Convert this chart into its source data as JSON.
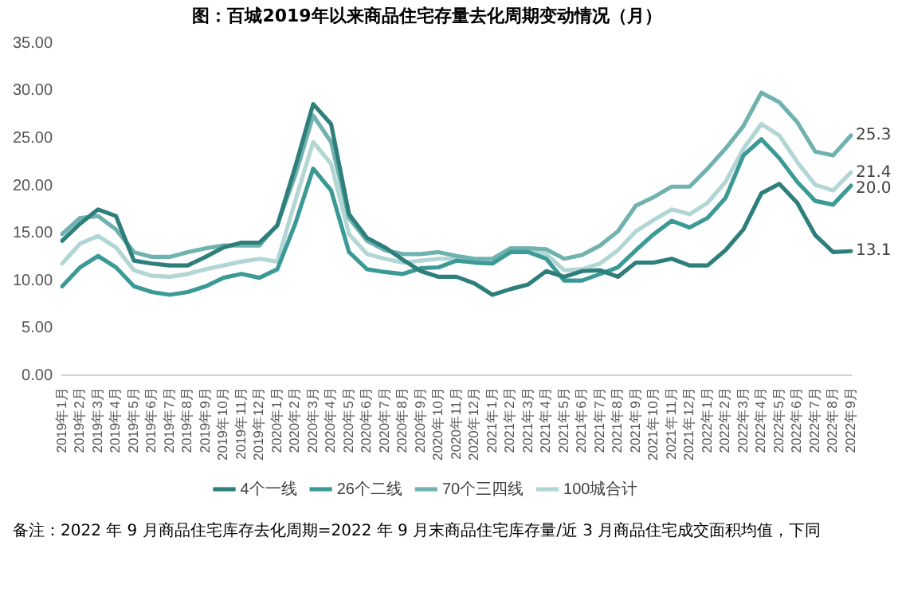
{
  "chart_data": {
    "type": "line",
    "title": "图：百城2019年以来商品住宅存量去化周期变动情况（月）",
    "categories": [
      "2019年1月",
      "2019年2月",
      "2019年3月",
      "2019年4月",
      "2019年5月",
      "2019年6月",
      "2019年7月",
      "2019年8月",
      "2019年9月",
      "2019年10月",
      "2019年11月",
      "2019年12月",
      "2020年1月",
      "2020年2月",
      "2020年3月",
      "2020年4月",
      "2020年5月",
      "2020年6月",
      "2020年7月",
      "2020年8月",
      "2020年9月",
      "2020年10月",
      "2020年11月",
      "2020年12月",
      "2021年1月",
      "2021年2月",
      "2021年3月",
      "2021年4月",
      "2021年5月",
      "2021年6月",
      "2021年7月",
      "2021年8月",
      "2021年9月",
      "2021年10月",
      "2021年11月",
      "2021年12月",
      "2022年1月",
      "2022年2月",
      "2022年3月",
      "2022年4月",
      "2022年5月",
      "2022年6月",
      "2022年7月",
      "2022年8月",
      "2022年9月"
    ],
    "series": [
      {
        "name": "4个一线",
        "color": "#2e7f7b",
        "values": [
          14.2,
          16,
          17.5,
          16.8,
          12.1,
          11.8,
          11.6,
          11.6,
          12.5,
          13.5,
          14,
          14,
          15.8,
          22,
          28.6,
          26.5,
          17,
          14.5,
          13.5,
          12.2,
          11,
          10.4,
          10.4,
          9.7,
          8.5,
          9.1,
          9.6,
          11,
          10.4,
          11,
          11.1,
          10.4,
          11.9,
          11.9,
          12.3,
          11.6,
          11.6,
          13.2,
          15.4,
          19.2,
          20.2,
          18.2,
          14.8,
          13,
          13.1
        ],
        "value_labels": [
          null,
          null,
          null,
          null,
          null,
          null,
          null,
          null,
          null,
          null,
          null,
          null,
          null,
          null,
          null,
          null,
          null,
          null,
          null,
          null,
          null,
          null,
          null,
          null,
          null,
          null,
          null,
          null,
          null,
          null,
          null,
          null,
          null,
          null,
          null,
          null,
          null,
          null,
          null,
          null,
          null,
          null,
          null,
          null,
          "13.1"
        ]
      },
      {
        "name": "26个二线",
        "color": "#3b9a96",
        "values": [
          9.4,
          11.4,
          12.6,
          11.4,
          9.4,
          8.8,
          8.5,
          8.8,
          9.4,
          10.3,
          10.7,
          10.3,
          11.2,
          16,
          21.8,
          19.5,
          13,
          11.2,
          10.9,
          10.7,
          11.3,
          11.4,
          12.1,
          11.9,
          11.8,
          13,
          13,
          12.3,
          10,
          10,
          10.7,
          11.4,
          13.2,
          14.9,
          16.3,
          15.6,
          16.6,
          18.7,
          23.2,
          24.9,
          22.9,
          20.4,
          18.4,
          18,
          20
        ],
        "value_labels": [
          null,
          null,
          null,
          null,
          null,
          null,
          null,
          null,
          null,
          null,
          null,
          null,
          null,
          null,
          null,
          null,
          null,
          null,
          null,
          null,
          null,
          null,
          null,
          null,
          null,
          null,
          null,
          null,
          null,
          null,
          null,
          null,
          null,
          null,
          null,
          null,
          null,
          null,
          null,
          null,
          null,
          null,
          null,
          null,
          "20.0"
        ]
      },
      {
        "name": "70个三四线",
        "color": "#70b2af",
        "values": [
          14.9,
          16.6,
          16.8,
          15.4,
          13,
          12.5,
          12.5,
          13,
          13.4,
          13.7,
          13.7,
          13.7,
          15.9,
          21.1,
          27.4,
          24.6,
          16.6,
          14.2,
          13.2,
          12.8,
          12.8,
          13,
          12.6,
          12.3,
          12.3,
          13.4,
          13.4,
          13.3,
          12.3,
          12.7,
          13.7,
          15.2,
          17.9,
          18.8,
          19.9,
          19.9,
          21.8,
          23.9,
          26.3,
          29.8,
          28.8,
          26.7,
          23.6,
          23.2,
          25.3
        ],
        "value_labels": [
          null,
          null,
          null,
          null,
          null,
          null,
          null,
          null,
          null,
          null,
          null,
          null,
          null,
          null,
          null,
          null,
          null,
          null,
          null,
          null,
          null,
          null,
          null,
          null,
          null,
          null,
          null,
          null,
          null,
          null,
          null,
          null,
          null,
          null,
          null,
          null,
          null,
          null,
          null,
          null,
          null,
          null,
          null,
          null,
          "25.3"
        ]
      },
      {
        "name": "100城合计",
        "color": "#b2d6d4",
        "values": [
          11.8,
          13.9,
          14.7,
          13.5,
          11.1,
          10.5,
          10.4,
          10.7,
          11.2,
          11.6,
          12,
          12.3,
          12,
          18.4,
          24.6,
          22.3,
          14.9,
          12.8,
          12.3,
          11.9,
          12.1,
          12.3,
          12.3,
          12.1,
          12.1,
          13,
          13,
          12.8,
          11.1,
          11.2,
          11.8,
          13.2,
          15.2,
          16.4,
          17.5,
          17,
          18.2,
          20.4,
          23.9,
          26.5,
          25.3,
          22.5,
          20.1,
          19.5,
          21.4
        ],
        "value_labels": [
          null,
          null,
          null,
          null,
          null,
          null,
          null,
          null,
          null,
          null,
          null,
          null,
          null,
          null,
          null,
          null,
          null,
          null,
          null,
          null,
          null,
          null,
          null,
          null,
          null,
          null,
          null,
          null,
          null,
          null,
          null,
          null,
          null,
          null,
          null,
          null,
          null,
          null,
          null,
          null,
          null,
          null,
          null,
          null,
          "21.4"
        ]
      }
    ],
    "ylim": [
      0,
      35
    ],
    "yticks": [
      {
        "value": 0,
        "label": "0.00"
      },
      {
        "value": 5,
        "label": "5.00"
      },
      {
        "value": 10,
        "label": "10.00"
      },
      {
        "value": 15,
        "label": "15.00"
      },
      {
        "value": 20,
        "label": "20.00"
      },
      {
        "value": 25,
        "label": "25.00"
      },
      {
        "value": 30,
        "label": "30.00"
      },
      {
        "value": 35,
        "label": "35.00"
      }
    ],
    "grid": false,
    "legend": "bottom",
    "marker": "none",
    "line_style": "solid",
    "annotations": [
      "备注：2022 年 9 月商品住宅库存去化周期=2022 年 9 月末商品住宅库存量/近 3 月商品住宅成交面积均值，下同"
    ]
  }
}
